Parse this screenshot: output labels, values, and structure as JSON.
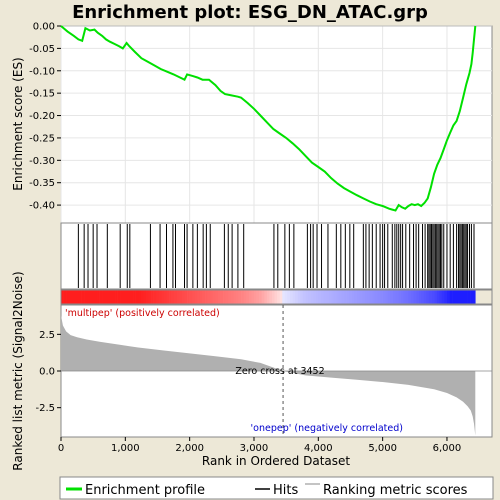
{
  "chart_data": {
    "type": "line",
    "title": "Enrichment plot: ESG_DN_ATAC.grp",
    "xlabel": "Rank in Ordered Dataset",
    "x_ticks": [
      "0",
      "1,000",
      "2,000",
      "3,000",
      "4,000",
      "5,000",
      "6,000"
    ],
    "xlim": [
      0,
      6700
    ],
    "es_panel": {
      "ylabel": "Enrichment score (ES)",
      "ylim": [
        -0.44,
        0.0
      ],
      "y_ticks": [
        "0.00",
        "-0.05",
        "-0.10",
        "-0.15",
        "-0.20",
        "-0.25",
        "-0.30",
        "-0.35",
        "-0.40"
      ],
      "series_name": "Enrichment profile",
      "color": "#00e000",
      "x": [
        0,
        100,
        200,
        270,
        330,
        380,
        450,
        520,
        570,
        640,
        700,
        760,
        830,
        900,
        960,
        1020,
        1060,
        1150,
        1250,
        1350,
        1450,
        1550,
        1650,
        1750,
        1850,
        1920,
        1960,
        2050,
        2120,
        2200,
        2300,
        2400,
        2480,
        2550,
        2650,
        2750,
        2800,
        2900,
        3000,
        3100,
        3200,
        3300,
        3400,
        3500,
        3600,
        3700,
        3800,
        3900,
        4000,
        4100,
        4200,
        4300,
        4400,
        4500,
        4600,
        4700,
        4800,
        4900,
        5000,
        5100,
        5150,
        5200,
        5250,
        5300,
        5350,
        5400,
        5450,
        5500,
        5550,
        5600,
        5650,
        5700,
        5750,
        5800,
        5850,
        5900,
        5950,
        6000,
        6050,
        6100,
        6150,
        6200,
        6250,
        6300,
        6350,
        6380,
        6400,
        6420,
        6440
      ],
      "y": [
        0.0,
        -0.012,
        -0.022,
        -0.03,
        -0.033,
        -0.005,
        -0.01,
        -0.008,
        -0.015,
        -0.022,
        -0.03,
        -0.035,
        -0.04,
        -0.045,
        -0.05,
        -0.038,
        -0.045,
        -0.058,
        -0.072,
        -0.08,
        -0.088,
        -0.096,
        -0.102,
        -0.108,
        -0.115,
        -0.12,
        -0.108,
        -0.112,
        -0.115,
        -0.12,
        -0.12,
        -0.132,
        -0.145,
        -0.152,
        -0.155,
        -0.158,
        -0.16,
        -0.172,
        -0.185,
        -0.2,
        -0.215,
        -0.23,
        -0.24,
        -0.25,
        -0.262,
        -0.275,
        -0.29,
        -0.305,
        -0.315,
        -0.325,
        -0.34,
        -0.352,
        -0.362,
        -0.37,
        -0.378,
        -0.385,
        -0.392,
        -0.398,
        -0.402,
        -0.408,
        -0.41,
        -0.412,
        -0.4,
        -0.405,
        -0.408,
        -0.402,
        -0.398,
        -0.4,
        -0.398,
        -0.402,
        -0.395,
        -0.385,
        -0.36,
        -0.33,
        -0.31,
        -0.295,
        -0.275,
        -0.255,
        -0.238,
        -0.222,
        -0.212,
        -0.19,
        -0.16,
        -0.13,
        -0.105,
        -0.085,
        -0.06,
        -0.03,
        0.0
      ]
    },
    "hits": {
      "series_name": "Hits",
      "positions": [
        270,
        360,
        420,
        500,
        560,
        720,
        920,
        1030,
        1070,
        1390,
        1540,
        1640,
        1740,
        1780,
        1920,
        1960,
        2050,
        2120,
        2210,
        2260,
        2320,
        2540,
        2600,
        2660,
        2750,
        2840,
        3310,
        3370,
        3480,
        3550,
        3620,
        3830,
        3880,
        3920,
        3980,
        4050,
        4150,
        4280,
        4350,
        4420,
        4490,
        4550,
        4700,
        4740,
        4790,
        4840,
        4900,
        4960,
        5000,
        5030,
        5080,
        5150,
        5190,
        5220,
        5250,
        5280,
        5310,
        5360,
        5420,
        5480,
        5520,
        5560,
        5620,
        5660,
        5700,
        5720,
        5740,
        5760,
        5780,
        5800,
        5820,
        5840,
        5860,
        5880,
        5900,
        5920,
        5950,
        6000,
        6050,
        6100,
        6150,
        6180,
        6200,
        6220,
        6240,
        6260,
        6280,
        6300,
        6320,
        6350,
        6380,
        6420
      ]
    },
    "ranking_panel": {
      "ylabel": "Ranked list metric (Signal2Noise)",
      "ylim": [
        -4.5,
        4.5
      ],
      "y_ticks": [
        "2.5",
        "0.0",
        "-2.5"
      ],
      "series_name": "Ranking metric scores",
      "color": "#b0b0b0",
      "x": [
        0,
        30,
        80,
        150,
        250,
        400,
        600,
        900,
        1200,
        1600,
        2000,
        2400,
        2800,
        3100,
        3452,
        3800,
        4200,
        4600,
        5000,
        5400,
        5800,
        6000,
        6150,
        6250,
        6320,
        6370,
        6400,
        6420,
        6440
      ],
      "y": [
        3.8,
        3.1,
        2.7,
        2.45,
        2.3,
        2.15,
        2.0,
        1.8,
        1.6,
        1.4,
        1.2,
        1.0,
        0.8,
        0.55,
        0.0,
        -0.3,
        -0.45,
        -0.6,
        -0.75,
        -0.95,
        -1.25,
        -1.5,
        -1.8,
        -2.1,
        -2.4,
        -2.7,
        -3.1,
        -3.6,
        -4.4
      ]
    },
    "annotations": {
      "positive": "'multipep' (positively correlated)",
      "negative": "'onepep' (negatively correlated)",
      "zero_cross": "Zero cross at 3452",
      "zero_cross_rank": 3452
    },
    "legend": {
      "placement": "bottom",
      "items": [
        "Enrichment profile",
        "Hits",
        "Ranking metric scores"
      ]
    }
  }
}
